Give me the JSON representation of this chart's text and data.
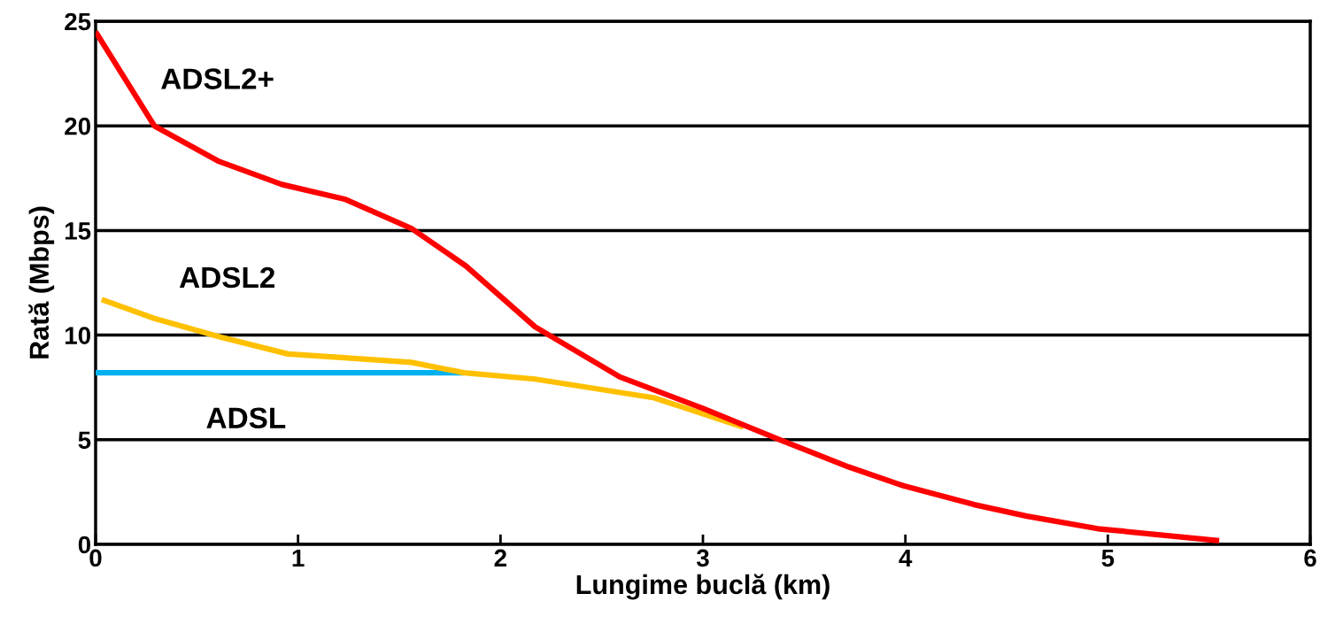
{
  "chart_data": {
    "type": "line",
    "xlabel": "Lungime buclă (km)",
    "ylabel": "Rată (Mbps)",
    "xlim": [
      0,
      6
    ],
    "ylim": [
      0,
      25
    ],
    "xticks": [
      0,
      1,
      2,
      3,
      4,
      5,
      6
    ],
    "yticks": [
      0,
      5,
      10,
      15,
      20,
      25
    ],
    "grid": "y",
    "legend": false,
    "marker": "none",
    "line_style": "solid",
    "series": [
      {
        "name": "ADSL2+",
        "color": "#ff0000",
        "x": [
          0,
          0.29,
          0.61,
          0.92,
          1.23,
          1.56,
          1.83,
          2.17,
          2.59,
          3.0,
          3.38,
          3.72,
          3.99,
          4.34,
          4.6,
          4.95,
          5.55
        ],
        "values": [
          24.5,
          20,
          18.3,
          17.2,
          16.5,
          15.1,
          13.3,
          10.4,
          8.0,
          6.5,
          5.0,
          3.7,
          2.8,
          1.9,
          1.35,
          0.75,
          0.17
        ]
      },
      {
        "name": "ADSL2",
        "color": "#ffc000",
        "x": [
          0.03,
          0.29,
          0.62,
          0.95,
          1.26,
          1.56,
          1.82,
          2.17,
          2.76,
          3.2
        ],
        "values": [
          11.7,
          10.8,
          9.9,
          9.1,
          8.9,
          8.7,
          8.2,
          7.9,
          7.0,
          5.6
        ]
      },
      {
        "name": "ADSL",
        "color": "#00b0f0",
        "x": [
          0,
          1.82
        ],
        "values": [
          8.2,
          8.2
        ]
      }
    ]
  }
}
